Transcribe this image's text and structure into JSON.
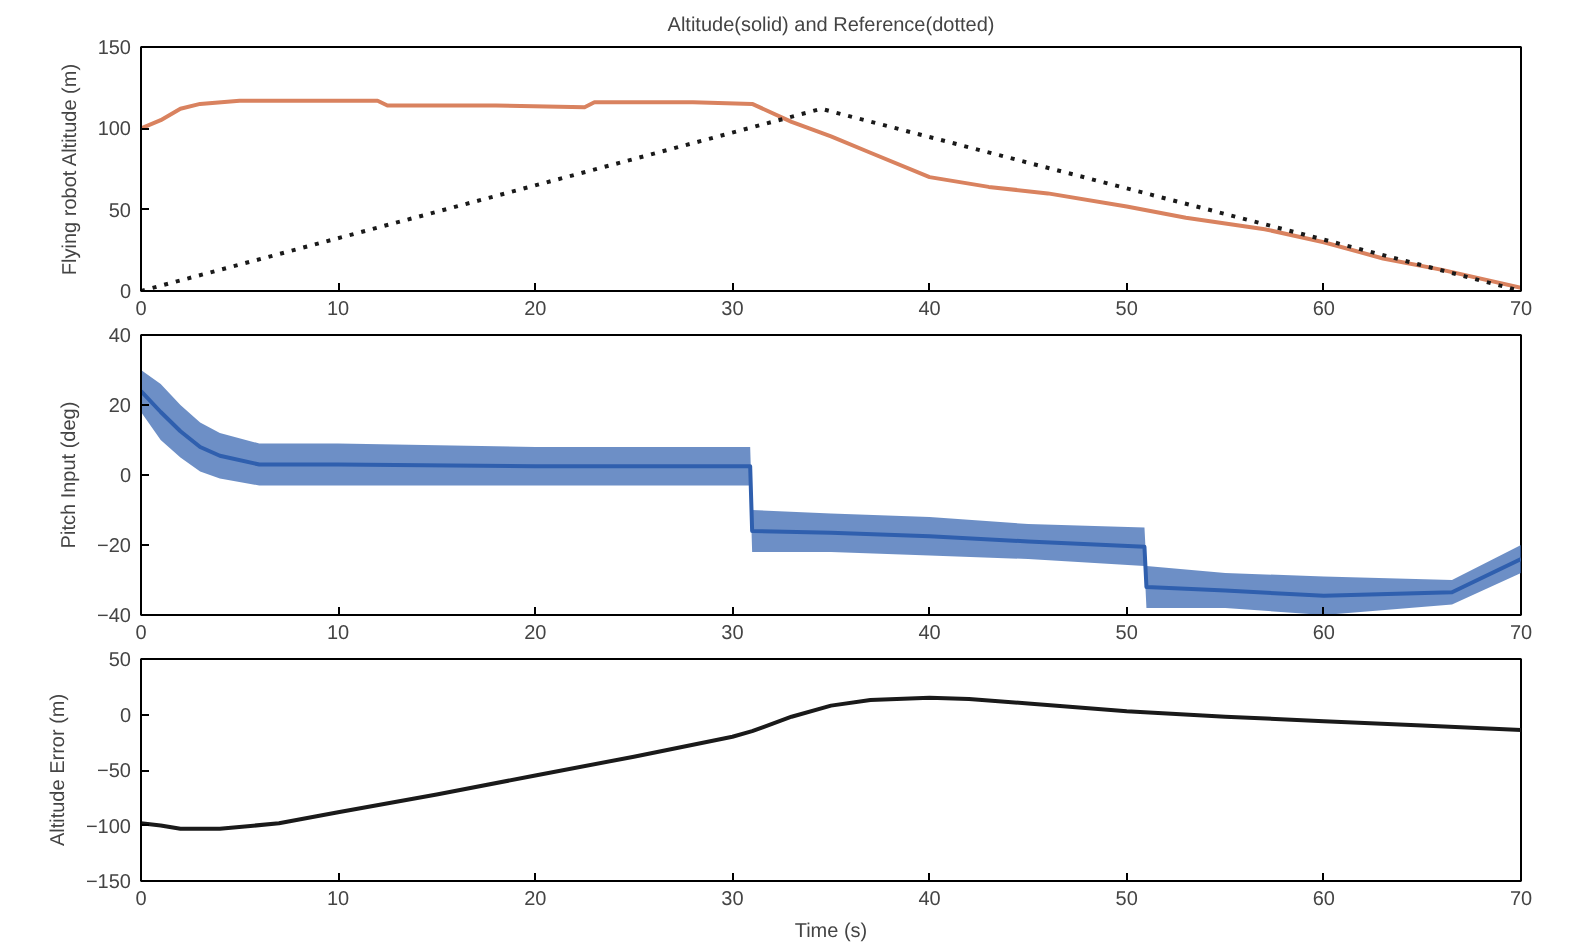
{
  "chart_data": [
    {
      "type": "line",
      "title": "Altitude(solid) and Reference(dotted)",
      "ylabel": "Flying robot Altitude (m)",
      "xlim": [
        0,
        70
      ],
      "ylim": [
        0,
        150
      ],
      "xticks": [
        0,
        10,
        20,
        30,
        40,
        50,
        60,
        70
      ],
      "yticks": [
        0,
        50,
        100,
        150
      ],
      "grid": false,
      "series": [
        {
          "x": [
            0,
            1,
            2,
            3,
            5,
            8,
            12,
            12.5,
            18,
            22.5,
            23,
            28,
            31,
            33,
            35,
            37,
            40,
            43,
            46,
            50,
            53,
            57,
            60,
            63,
            66,
            70
          ],
          "values": [
            100,
            105,
            112,
            115,
            117,
            117,
            117,
            114,
            114,
            113,
            116,
            116,
            115,
            104,
            95,
            85,
            70,
            64,
            60,
            52,
            45,
            38,
            30,
            20,
            13,
            2
          ],
          "color": "#d9825f",
          "line_style": "solid"
        },
        {
          "x": [
            0,
            34.5,
            70
          ],
          "values": [
            0,
            112,
            0
          ],
          "color": "#1a1a1a",
          "line_style": "dotted"
        }
      ]
    },
    {
      "type": "line",
      "ylabel": "Pitch Input (deg)",
      "xlim": [
        0,
        70
      ],
      "ylim": [
        -40,
        40
      ],
      "xticks": [
        0,
        10,
        20,
        30,
        40,
        50,
        60,
        70
      ],
      "yticks": [
        -40,
        -20,
        0,
        20,
        40
      ],
      "grid": false,
      "series": [
        {
          "x": [
            0,
            1,
            2,
            3,
            4,
            6,
            10,
            20,
            30.9,
            31,
            35,
            40,
            45,
            50.9,
            51,
            55,
            60,
            66.5,
            70
          ],
          "values": [
            24,
            18,
            12.5,
            8,
            5.5,
            3,
            3,
            2.5,
            2.5,
            -16,
            -16.5,
            -17.5,
            -19,
            -20.5,
            -32,
            -33,
            -34.5,
            -33.5,
            -24
          ],
          "lower": [
            18,
            10,
            5,
            1,
            -1,
            -3,
            -3,
            -3,
            -3,
            -22,
            -22,
            -23,
            -24,
            -26,
            -38,
            -38,
            -40,
            -37,
            -28
          ],
          "upper": [
            30,
            26,
            20,
            15,
            12,
            9,
            9,
            8,
            8,
            -10,
            -11,
            -12,
            -14,
            -15,
            -26,
            -28,
            -29,
            -30,
            -20
          ],
          "color": "#2f5fae"
        }
      ]
    },
    {
      "type": "line",
      "ylabel": "Altitude Error (m)",
      "xlabel": "Time (s)",
      "xlim": [
        0,
        70
      ],
      "ylim": [
        -150,
        50
      ],
      "xticks": [
        0,
        10,
        20,
        30,
        40,
        50,
        60,
        70
      ],
      "yticks": [
        -150,
        -100,
        -50,
        0,
        50
      ],
      "grid": false,
      "series": [
        {
          "x": [
            0,
            1,
            2,
            4,
            7,
            10,
            15,
            20,
            25,
            30,
            31,
            33,
            35,
            37,
            40,
            42,
            45,
            50,
            55,
            60,
            65,
            70
          ],
          "values": [
            -98,
            -100,
            -103,
            -103,
            -98,
            -88,
            -72,
            -55,
            -38,
            -20,
            -15,
            -2,
            8,
            13,
            15,
            14,
            10,
            3,
            -2,
            -6,
            -10,
            -14
          ],
          "color": "#1a1a1a",
          "line_style": "solid"
        }
      ]
    }
  ]
}
